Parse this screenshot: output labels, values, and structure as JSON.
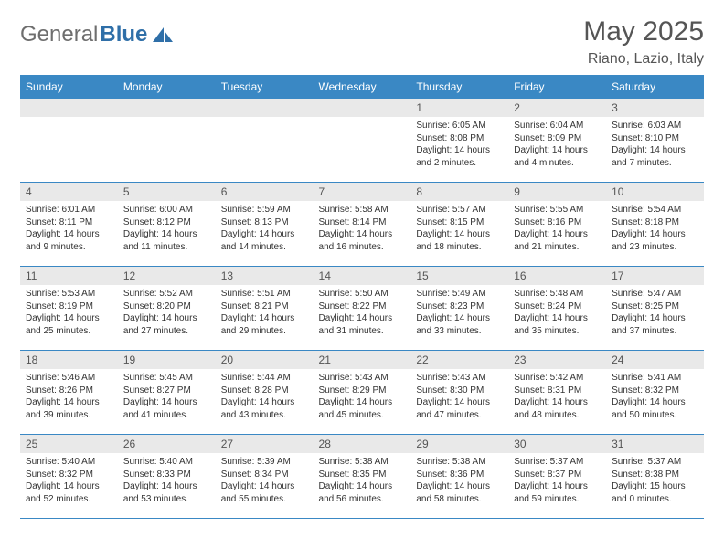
{
  "brand": {
    "part1": "General",
    "part2": "Blue"
  },
  "header": {
    "title": "May 2025",
    "location": "Riano, Lazio, Italy"
  },
  "colors": {
    "accent": "#3a88c4",
    "daynum_bg": "#e9e9e9",
    "text": "#333333"
  },
  "weekdays": [
    "Sunday",
    "Monday",
    "Tuesday",
    "Wednesday",
    "Thursday",
    "Friday",
    "Saturday"
  ],
  "weeks": [
    [
      null,
      null,
      null,
      null,
      {
        "n": "1",
        "sr": "Sunrise: 6:05 AM",
        "ss": "Sunset: 8:08 PM",
        "dl": "Daylight: 14 hours and 2 minutes."
      },
      {
        "n": "2",
        "sr": "Sunrise: 6:04 AM",
        "ss": "Sunset: 8:09 PM",
        "dl": "Daylight: 14 hours and 4 minutes."
      },
      {
        "n": "3",
        "sr": "Sunrise: 6:03 AM",
        "ss": "Sunset: 8:10 PM",
        "dl": "Daylight: 14 hours and 7 minutes."
      }
    ],
    [
      {
        "n": "4",
        "sr": "Sunrise: 6:01 AM",
        "ss": "Sunset: 8:11 PM",
        "dl": "Daylight: 14 hours and 9 minutes."
      },
      {
        "n": "5",
        "sr": "Sunrise: 6:00 AM",
        "ss": "Sunset: 8:12 PM",
        "dl": "Daylight: 14 hours and 11 minutes."
      },
      {
        "n": "6",
        "sr": "Sunrise: 5:59 AM",
        "ss": "Sunset: 8:13 PM",
        "dl": "Daylight: 14 hours and 14 minutes."
      },
      {
        "n": "7",
        "sr": "Sunrise: 5:58 AM",
        "ss": "Sunset: 8:14 PM",
        "dl": "Daylight: 14 hours and 16 minutes."
      },
      {
        "n": "8",
        "sr": "Sunrise: 5:57 AM",
        "ss": "Sunset: 8:15 PM",
        "dl": "Daylight: 14 hours and 18 minutes."
      },
      {
        "n": "9",
        "sr": "Sunrise: 5:55 AM",
        "ss": "Sunset: 8:16 PM",
        "dl": "Daylight: 14 hours and 21 minutes."
      },
      {
        "n": "10",
        "sr": "Sunrise: 5:54 AM",
        "ss": "Sunset: 8:18 PM",
        "dl": "Daylight: 14 hours and 23 minutes."
      }
    ],
    [
      {
        "n": "11",
        "sr": "Sunrise: 5:53 AM",
        "ss": "Sunset: 8:19 PM",
        "dl": "Daylight: 14 hours and 25 minutes."
      },
      {
        "n": "12",
        "sr": "Sunrise: 5:52 AM",
        "ss": "Sunset: 8:20 PM",
        "dl": "Daylight: 14 hours and 27 minutes."
      },
      {
        "n": "13",
        "sr": "Sunrise: 5:51 AM",
        "ss": "Sunset: 8:21 PM",
        "dl": "Daylight: 14 hours and 29 minutes."
      },
      {
        "n": "14",
        "sr": "Sunrise: 5:50 AM",
        "ss": "Sunset: 8:22 PM",
        "dl": "Daylight: 14 hours and 31 minutes."
      },
      {
        "n": "15",
        "sr": "Sunrise: 5:49 AM",
        "ss": "Sunset: 8:23 PM",
        "dl": "Daylight: 14 hours and 33 minutes."
      },
      {
        "n": "16",
        "sr": "Sunrise: 5:48 AM",
        "ss": "Sunset: 8:24 PM",
        "dl": "Daylight: 14 hours and 35 minutes."
      },
      {
        "n": "17",
        "sr": "Sunrise: 5:47 AM",
        "ss": "Sunset: 8:25 PM",
        "dl": "Daylight: 14 hours and 37 minutes."
      }
    ],
    [
      {
        "n": "18",
        "sr": "Sunrise: 5:46 AM",
        "ss": "Sunset: 8:26 PM",
        "dl": "Daylight: 14 hours and 39 minutes."
      },
      {
        "n": "19",
        "sr": "Sunrise: 5:45 AM",
        "ss": "Sunset: 8:27 PM",
        "dl": "Daylight: 14 hours and 41 minutes."
      },
      {
        "n": "20",
        "sr": "Sunrise: 5:44 AM",
        "ss": "Sunset: 8:28 PM",
        "dl": "Daylight: 14 hours and 43 minutes."
      },
      {
        "n": "21",
        "sr": "Sunrise: 5:43 AM",
        "ss": "Sunset: 8:29 PM",
        "dl": "Daylight: 14 hours and 45 minutes."
      },
      {
        "n": "22",
        "sr": "Sunrise: 5:43 AM",
        "ss": "Sunset: 8:30 PM",
        "dl": "Daylight: 14 hours and 47 minutes."
      },
      {
        "n": "23",
        "sr": "Sunrise: 5:42 AM",
        "ss": "Sunset: 8:31 PM",
        "dl": "Daylight: 14 hours and 48 minutes."
      },
      {
        "n": "24",
        "sr": "Sunrise: 5:41 AM",
        "ss": "Sunset: 8:32 PM",
        "dl": "Daylight: 14 hours and 50 minutes."
      }
    ],
    [
      {
        "n": "25",
        "sr": "Sunrise: 5:40 AM",
        "ss": "Sunset: 8:32 PM",
        "dl": "Daylight: 14 hours and 52 minutes."
      },
      {
        "n": "26",
        "sr": "Sunrise: 5:40 AM",
        "ss": "Sunset: 8:33 PM",
        "dl": "Daylight: 14 hours and 53 minutes."
      },
      {
        "n": "27",
        "sr": "Sunrise: 5:39 AM",
        "ss": "Sunset: 8:34 PM",
        "dl": "Daylight: 14 hours and 55 minutes."
      },
      {
        "n": "28",
        "sr": "Sunrise: 5:38 AM",
        "ss": "Sunset: 8:35 PM",
        "dl": "Daylight: 14 hours and 56 minutes."
      },
      {
        "n": "29",
        "sr": "Sunrise: 5:38 AM",
        "ss": "Sunset: 8:36 PM",
        "dl": "Daylight: 14 hours and 58 minutes."
      },
      {
        "n": "30",
        "sr": "Sunrise: 5:37 AM",
        "ss": "Sunset: 8:37 PM",
        "dl": "Daylight: 14 hours and 59 minutes."
      },
      {
        "n": "31",
        "sr": "Sunrise: 5:37 AM",
        "ss": "Sunset: 8:38 PM",
        "dl": "Daylight: 15 hours and 0 minutes."
      }
    ]
  ]
}
